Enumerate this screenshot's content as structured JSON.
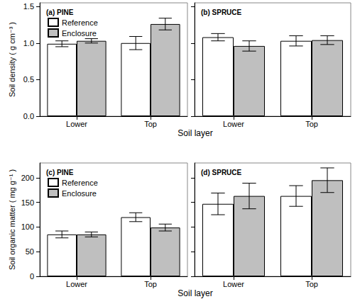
{
  "chart_data": [
    {
      "type": "bar",
      "title": "(a) PINE",
      "ylabel": "Soil density ( g cm⁻³ )",
      "xlabel": "Soil layer",
      "categories": [
        "Lower",
        "Top"
      ],
      "series": [
        {
          "name": "Reference",
          "color": "#ffffff",
          "values": [
            0.99,
            1.0
          ],
          "errors": [
            0.04,
            0.09
          ]
        },
        {
          "name": "Enclosure",
          "color": "#bfbfbf",
          "values": [
            1.03,
            1.26
          ],
          "errors": [
            0.03,
            0.08
          ]
        }
      ],
      "ylim": [
        0,
        1.55
      ],
      "yticks": [
        {
          "value": 0,
          "label": "0.0"
        },
        0.5,
        {
          "value": 1,
          "label": "1.0"
        },
        1.5
      ],
      "grid": false,
      "legend": "upper left"
    },
    {
      "type": "bar",
      "title": "(b) SPRUCE",
      "categories": [
        "Lower",
        "Top"
      ],
      "series": [
        {
          "name": "Reference",
          "color": "#ffffff",
          "values": [
            1.08,
            1.03
          ],
          "errors": [
            0.05,
            0.07
          ]
        },
        {
          "name": "Enclosure",
          "color": "#bfbfbf",
          "values": [
            0.96,
            1.04
          ],
          "errors": [
            0.07,
            0.06
          ]
        }
      ],
      "ylim": [
        0,
        1.55
      ],
      "yticks": [
        0,
        0.5,
        1,
        1.5
      ],
      "grid": false,
      "tick_labels": "x"
    },
    {
      "type": "bar",
      "title": "(c) PINE",
      "ylabel": "Soil organic matter ( mg g⁻¹ )",
      "xlabel": "Soil layer",
      "categories": [
        "Lower",
        "Top"
      ],
      "series": [
        {
          "name": "Reference",
          "color": "#ffffff",
          "values": [
            85,
            120
          ],
          "errors": [
            7,
            9
          ]
        },
        {
          "name": "Enclosure",
          "color": "#bfbfbf",
          "values": [
            85,
            99
          ],
          "errors": [
            5,
            7
          ]
        }
      ],
      "ylim": [
        0,
        230
      ],
      "yticks": [
        0,
        50,
        100,
        150,
        200
      ],
      "grid": false,
      "legend": "upper left"
    },
    {
      "type": "bar",
      "title": "(d) SPRUCE",
      "categories": [
        "Lower",
        "Top"
      ],
      "series": [
        {
          "name": "Reference",
          "color": "#ffffff",
          "values": [
            147,
            163
          ],
          "errors": [
            22,
            21
          ]
        },
        {
          "name": "Enclosure",
          "color": "#bfbfbf",
          "values": [
            163,
            195
          ],
          "errors": [
            26,
            25
          ]
        }
      ],
      "ylim": [
        0,
        230
      ],
      "yticks": [
        0,
        50,
        100,
        150,
        200
      ],
      "grid": false,
      "tick_labels": "x"
    }
  ]
}
